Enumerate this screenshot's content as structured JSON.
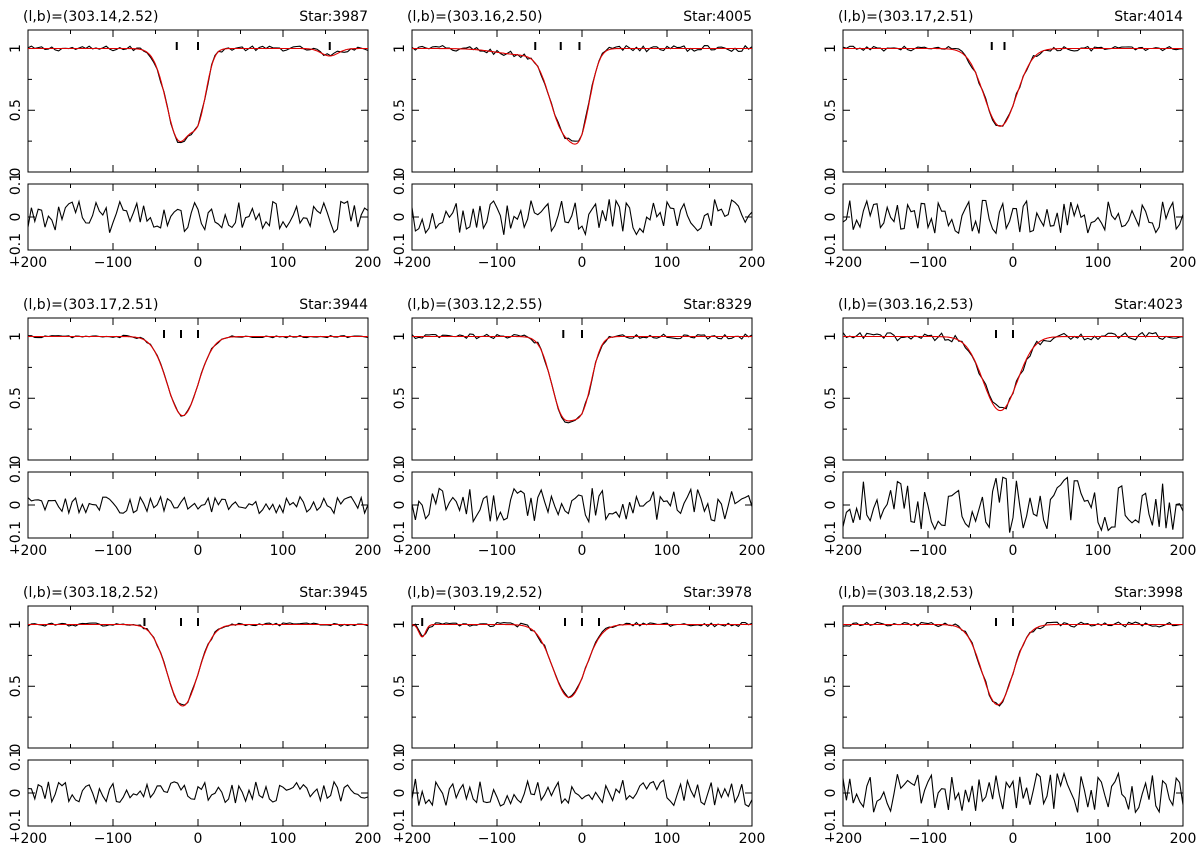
{
  "figure": {
    "x_tick_labels": [
      "−200",
      "−100",
      "0",
      "100",
      "200"
    ],
    "top_y_tick_labels": [
      "0",
      "0.5",
      "1"
    ],
    "bottom_y_tick_labels": [
      "−0.1",
      "0",
      "0.1"
    ],
    "colors": {
      "observed": "#000000",
      "fit": "#e00000"
    }
  },
  "chart_data": [
    {
      "type": "line",
      "title": "(l,b)=(303.14,2.52)",
      "star_label": "Star:3987",
      "xlim": [
        -200,
        200
      ],
      "spectrum_ylim": [
        0,
        1.15
      ],
      "residual_ylim": [
        -0.1,
        0.1
      ],
      "components": [
        -25,
        0,
        155
      ],
      "fit": {
        "center": -22,
        "width": 15,
        "depth": 0.74,
        "shoulder_center": 2,
        "shoulder_width": 9,
        "shoulder_depth": 0.38,
        "dip_center": 155,
        "dip_width": 10,
        "dip_depth": 0.06
      },
      "observed_noise": 0.012,
      "residual_noise": 0.028
    },
    {
      "type": "line",
      "title": "(l,b)=(303.16,2.50)",
      "star_label": "Star:4005",
      "xlim": [
        -200,
        200
      ],
      "spectrum_ylim": [
        0,
        1.15
      ],
      "residual_ylim": [
        -0.1,
        0.1
      ],
      "components": [
        -55,
        -25,
        -3
      ],
      "fit": {
        "center": -22,
        "width": 16,
        "depth": 0.62,
        "shoulder_center": 0,
        "shoulder_width": 11,
        "shoulder_depth": 0.45,
        "wing_center": -70,
        "wing_width": 30,
        "wing_depth": 0.05
      },
      "observed_noise": 0.015,
      "residual_noise": 0.032
    },
    {
      "type": "line",
      "title": "(l,b)=(303.17,2.51)",
      "star_label": "Star:4014",
      "xlim": [
        -200,
        200
      ],
      "spectrum_ylim": [
        0,
        1.15
      ],
      "residual_ylim": [
        -0.1,
        0.1
      ],
      "components": [
        -25,
        -10
      ],
      "fit": {
        "center": -15,
        "width": 19,
        "depth": 0.63
      },
      "observed_noise": 0.012,
      "residual_noise": 0.03
    },
    {
      "type": "line",
      "title": "(l,b)=(303.17,2.51)",
      "star_label": "Star:3944",
      "xlim": [
        -200,
        200
      ],
      "spectrum_ylim": [
        0,
        1.15
      ],
      "residual_ylim": [
        -0.1,
        0.1
      ],
      "components": [
        -40,
        -20,
        0
      ],
      "fit": {
        "center": -18,
        "width": 18,
        "depth": 0.64
      },
      "observed_noise": 0.006,
      "residual_noise": 0.015
    },
    {
      "type": "line",
      "title": "(l,b)=(303.12,2.55)",
      "star_label": "Star:8329",
      "xlim": [
        -200,
        200
      ],
      "spectrum_ylim": [
        0,
        1.15
      ],
      "residual_ylim": [
        -0.1,
        0.1
      ],
      "components": [
        -22,
        0
      ],
      "fit": {
        "center": -22,
        "width": 14,
        "depth": 0.62,
        "shoulder_center": 2,
        "shoulder_width": 11,
        "shoulder_depth": 0.45
      },
      "observed_noise": 0.012,
      "residual_noise": 0.03
    },
    {
      "type": "line",
      "title": "(l,b)=(303.16,2.53)",
      "star_label": "Star:4023",
      "xlim": [
        -200,
        200
      ],
      "spectrum_ylim": [
        0,
        1.15
      ],
      "residual_ylim": [
        -0.1,
        0.1
      ],
      "components": [
        -20,
        0
      ],
      "fit": {
        "center": -15,
        "width": 20,
        "depth": 0.6
      },
      "observed_noise": 0.02,
      "residual_noise": 0.05
    },
    {
      "type": "line",
      "title": "(l,b)=(303.18,2.52)",
      "star_label": "Star:3945",
      "xlim": [
        -200,
        200
      ],
      "spectrum_ylim": [
        0,
        1.15
      ],
      "residual_ylim": [
        -0.1,
        0.1
      ],
      "components": [
        -63,
        -20,
        0
      ],
      "fit": {
        "center": -18,
        "width": 18,
        "depth": 0.66
      },
      "observed_noise": 0.008,
      "residual_noise": 0.02
    },
    {
      "type": "line",
      "title": "(l,b)=(303.19,2.52)",
      "star_label": "Star:3978",
      "xlim": [
        -200,
        200
      ],
      "spectrum_ylim": [
        0,
        1.15
      ],
      "residual_ylim": [
        -0.1,
        0.1
      ],
      "components": [
        -188,
        -20,
        0,
        20
      ],
      "fit": {
        "center": -15,
        "width": 19,
        "depth": 0.59,
        "dip_center": -188,
        "dip_width": 4,
        "dip_depth": 0.1
      },
      "observed_noise": 0.01,
      "residual_noise": 0.025
    },
    {
      "type": "line",
      "title": "(l,b)=(303.18,2.53)",
      "star_label": "Star:3998",
      "xlim": [
        -200,
        200
      ],
      "spectrum_ylim": [
        0,
        1.15
      ],
      "residual_ylim": [
        -0.1,
        0.1
      ],
      "components": [
        -20,
        0
      ],
      "fit": {
        "center": -18,
        "width": 18,
        "depth": 0.65
      },
      "observed_noise": 0.012,
      "residual_noise": 0.035
    }
  ]
}
